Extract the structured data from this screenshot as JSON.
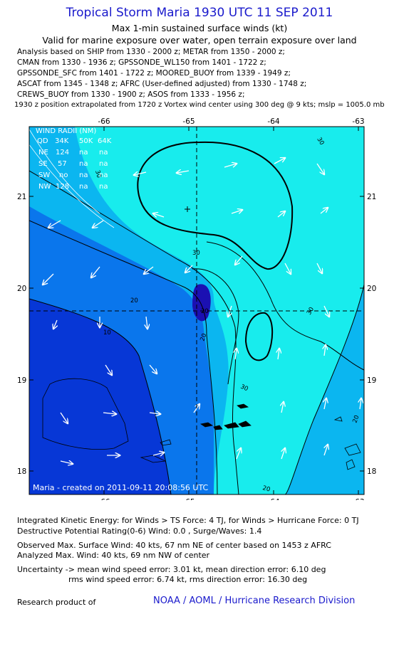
{
  "header": {
    "title": "Tropical Storm Maria 1930 UTC 11 SEP 2011",
    "subtitle1": "Max 1-min sustained surface winds (kt)",
    "subtitle2": "Valid for marine exposure over water, open terrain exposure over land",
    "analysis_lines": [
      "Analysis based on SHIP from 1330 - 2000 z; METAR from 1350 - 2000 z;",
      "CMAN from 1330 - 1936 z; GPSSONDE_WL150 from 1401 - 1722 z;",
      "GPSSONDE_SFC from 1401 - 1722 z; MOORED_BUOY from 1339 - 1949 z;",
      "ASCAT from 1345 - 1348 z; AFRC (User-defined adjusted) from 1330 - 1748 z;",
      "CREWS_BUOY from 1330 - 1900 z; ASOS from 1333 - 1956 z;"
    ],
    "position_line": "1930 z position extrapolated from 1720 z Vortex wind center using 300 deg @ 9 kts; mslp = 1005.0 mb"
  },
  "map": {
    "lon_labels": [
      "-66",
      "-65",
      "-64",
      "-63"
    ],
    "lat_labels": [
      "21",
      "20",
      "19",
      "18"
    ],
    "contour_labels": [
      "30",
      "30",
      "20",
      "10",
      "20",
      "30",
      "20",
      "30",
      "20",
      "30",
      "20"
    ],
    "wind_radii": {
      "header": "WIND RADII (NM)",
      "columns": [
        "QD",
        "34K",
        "50K",
        "64K"
      ],
      "rows": [
        [
          "NE",
          "124",
          "na",
          "na"
        ],
        [
          "SE",
          "57",
          "na",
          "na"
        ],
        [
          "SW",
          "no",
          "na",
          "na"
        ],
        [
          "NW",
          "128",
          "na",
          "na"
        ]
      ]
    },
    "created_label": "Maria - created on 2011-09-11 20:08:56 UTC",
    "colors": {
      "ge30": "#18eced",
      "20_30": "#0bb6f0",
      "10_20": "#0a76ec",
      "lt10": "#0737d6",
      "core": "#1b10b2",
      "border": "#000000"
    }
  },
  "footer": {
    "ike_line": "Integrated Kinetic Energy:  for Winds > TS Force: 4 TJ,  for Winds > Hurricane Force: 0 TJ",
    "dpr_line": "Destructive Potential Rating(0-6)   Wind: 0.0 , Surge/Waves: 1.4",
    "observed_line": "Observed Max. Surface Wind: 40 kts, 67 nm NE of center based on 1453 z AFRC",
    "analyzed_line": "Analyzed Max. Wind: 40 kts, 69 nm NW of center",
    "uncertainty_line1": "Uncertainty -> mean wind speed error: 3.01 kt,   mean direction error: 6.10 deg",
    "uncertainty_line2": "rms wind speed error: 6.74 kt,   rms direction error: 16.30 deg",
    "research_label": "Research product of",
    "credit": "NOAA / AOML / Hurricane Research Division"
  }
}
